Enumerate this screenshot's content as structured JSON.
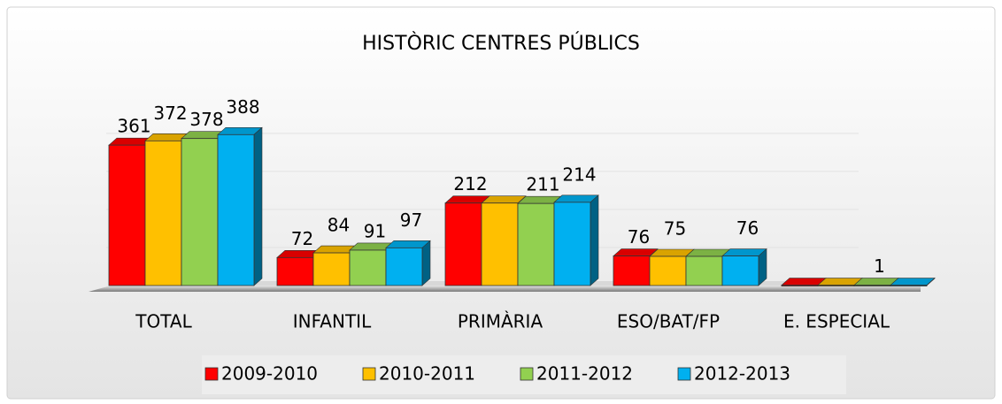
{
  "chart_data": {
    "type": "bar3d",
    "title": "HISTÒRIC CENTRES PÚBLICS",
    "categories": [
      "TOTAL",
      "INFANTIL",
      "PRIMÀRIA",
      "ESO/BAT/FP",
      "E. ESPECIAL"
    ],
    "series": [
      {
        "name": "2009-2010",
        "color": "#ff0000",
        "values": [
          361,
          72,
          212,
          76,
          1
        ],
        "value_labels": [
          "361",
          "72",
          "212",
          "76",
          null
        ]
      },
      {
        "name": "2010-2011",
        "color": "#ffc000",
        "values": [
          372,
          84,
          212,
          75,
          1
        ],
        "value_labels": [
          "372",
          "84",
          null,
          "75",
          null
        ]
      },
      {
        "name": "2011-2012",
        "color": "#92d050",
        "values": [
          378,
          91,
          211,
          75,
          1
        ],
        "value_labels": [
          "378",
          "91",
          "211",
          null,
          "1"
        ]
      },
      {
        "name": "2012-2013",
        "color": "#00b0f0",
        "values": [
          388,
          97,
          214,
          76,
          1
        ],
        "value_labels": [
          "388",
          "97",
          "214",
          "76",
          null
        ]
      }
    ],
    "ylim": [
      0,
      450
    ],
    "grid": true,
    "legend": "bottom"
  }
}
